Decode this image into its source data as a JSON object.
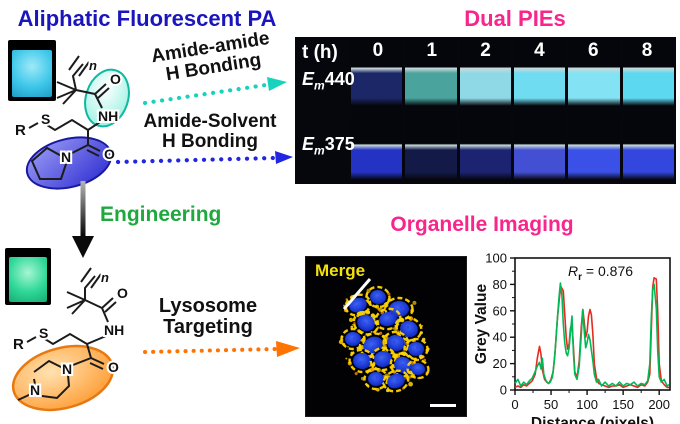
{
  "header": {
    "left_title": "Aliphatic Fluorescent PA",
    "right_title": "Dual PIEs"
  },
  "flow": {
    "amide_amide_line1": "Amide-amide",
    "amide_amide_line2": "H Bonding",
    "amide_solvent_line1": "Amide-Solvent",
    "amide_solvent_line2": "H Bonding",
    "engineering": "Engineering",
    "lysosome_line1": "Lysosome",
    "lysosome_line2": "Targeting"
  },
  "structure_labels": {
    "r_group": "R",
    "sulfur": "S",
    "amide_nh": "NH",
    "oxygen": "O",
    "nitrogen": "N",
    "repeat_unit": "n"
  },
  "uv_panel": {
    "time_header": "t (h)",
    "time_points": [
      "0",
      "1",
      "2",
      "4",
      "6",
      "8"
    ],
    "rows": [
      {
        "em_prefix": "E",
        "em_sub": "m",
        "em_value": "440",
        "vial_colors": [
          "#1b2766",
          "#4aa39c",
          "#8fd9e6",
          "#6fdcf2",
          "#83e2f4",
          "#5cd9f0"
        ]
      },
      {
        "em_prefix": "E",
        "em_sub": "m",
        "em_value": "375",
        "vial_colors": [
          "#2433c4",
          "#131a48",
          "#1c2472",
          "#4450d4",
          "#3a50e6",
          "#3346de"
        ]
      }
    ]
  },
  "imaging": {
    "title": "Organelle Imaging",
    "merge_label": "Merge"
  },
  "colors": {
    "left_title_blue": "#1a16bc",
    "pink_magenta": "#f7258c",
    "engineering_green": "#1fa83e",
    "arrow_teal": "#17d3be",
    "arrow_blue": "#2326e0",
    "arrow_orange": "#ff7300",
    "cuvette_cyan": "#3fc8ea",
    "cuvette_green": "#2fd898",
    "highlight_cyan_ellipse": "#8ff0e0",
    "highlight_blue_ellipse": "#4040e0",
    "highlight_orange_ellipse": "#ff9020"
  },
  "chart_data": {
    "type": "line",
    "title": "",
    "xlabel": "Distance (pixels)",
    "ylabel": "Grey Value",
    "xlim": [
      0,
      215
    ],
    "ylim": [
      0,
      100
    ],
    "xticks": [
      0,
      50,
      100,
      150,
      200
    ],
    "yticks": [
      0,
      20,
      40,
      60,
      80,
      100
    ],
    "grid": false,
    "legend": "none",
    "annotation": {
      "r_var": "R",
      "r_sub": "r",
      "equals_value": " = 0.876"
    },
    "series": [
      {
        "name": "red-channel",
        "color": "#e8291e",
        "points": [
          [
            0,
            2
          ],
          [
            4,
            3
          ],
          [
            8,
            2
          ],
          [
            12,
            4
          ],
          [
            16,
            3
          ],
          [
            20,
            5
          ],
          [
            24,
            7
          ],
          [
            28,
            12
          ],
          [
            31,
            24
          ],
          [
            34,
            33
          ],
          [
            36,
            27
          ],
          [
            38,
            15
          ],
          [
            41,
            8
          ],
          [
            44,
            6
          ],
          [
            47,
            5
          ],
          [
            50,
            8
          ],
          [
            53,
            14
          ],
          [
            56,
            32
          ],
          [
            59,
            55
          ],
          [
            62,
            72
          ],
          [
            64,
            78
          ],
          [
            67,
            75
          ],
          [
            69,
            58
          ],
          [
            71,
            40
          ],
          [
            73,
            31
          ],
          [
            75,
            35
          ],
          [
            77,
            47
          ],
          [
            79,
            50
          ],
          [
            81,
            33
          ],
          [
            83,
            14
          ],
          [
            86,
            9
          ],
          [
            89,
            22
          ],
          [
            92,
            48
          ],
          [
            94,
            61
          ],
          [
            96,
            52
          ],
          [
            98,
            40
          ],
          [
            100,
            44
          ],
          [
            102,
            56
          ],
          [
            104,
            61
          ],
          [
            106,
            57
          ],
          [
            108,
            42
          ],
          [
            110,
            20
          ],
          [
            113,
            9
          ],
          [
            116,
            5
          ],
          [
            120,
            4
          ],
          [
            125,
            3
          ],
          [
            130,
            2
          ],
          [
            135,
            3
          ],
          [
            140,
            3
          ],
          [
            145,
            4
          ],
          [
            150,
            2
          ],
          [
            155,
            3
          ],
          [
            160,
            4
          ],
          [
            165,
            3
          ],
          [
            170,
            2
          ],
          [
            175,
            4
          ],
          [
            180,
            3
          ],
          [
            184,
            6
          ],
          [
            187,
            12
          ],
          [
            189,
            45
          ],
          [
            191,
            78
          ],
          [
            193,
            85
          ],
          [
            196,
            84
          ],
          [
            198,
            60
          ],
          [
            200,
            20
          ],
          [
            203,
            7
          ],
          [
            207,
            4
          ],
          [
            211,
            2
          ],
          [
            214,
            2
          ]
        ]
      },
      {
        "name": "green-channel",
        "color": "#00b956",
        "points": [
          [
            0,
            5
          ],
          [
            4,
            8
          ],
          [
            8,
            3
          ],
          [
            12,
            6
          ],
          [
            16,
            4
          ],
          [
            20,
            7
          ],
          [
            24,
            9
          ],
          [
            28,
            14
          ],
          [
            31,
            18
          ],
          [
            34,
            21
          ],
          [
            36,
            16
          ],
          [
            38,
            24
          ],
          [
            40,
            12
          ],
          [
            43,
            7
          ],
          [
            46,
            5
          ],
          [
            49,
            6
          ],
          [
            52,
            10
          ],
          [
            55,
            25
          ],
          [
            58,
            48
          ],
          [
            61,
            70
          ],
          [
            63,
            81
          ],
          [
            65,
            72
          ],
          [
            67,
            50
          ],
          [
            69,
            36
          ],
          [
            71,
            28
          ],
          [
            73,
            26
          ],
          [
            75,
            32
          ],
          [
            77,
            44
          ],
          [
            79,
            56
          ],
          [
            81,
            28
          ],
          [
            83,
            12
          ],
          [
            86,
            8
          ],
          [
            89,
            18
          ],
          [
            92,
            42
          ],
          [
            94,
            61
          ],
          [
            96,
            45
          ],
          [
            98,
            32
          ],
          [
            100,
            36
          ],
          [
            102,
            42
          ],
          [
            104,
            38
          ],
          [
            106,
            30
          ],
          [
            108,
            22
          ],
          [
            110,
            12
          ],
          [
            113,
            6
          ],
          [
            116,
            8
          ],
          [
            120,
            3
          ],
          [
            125,
            6
          ],
          [
            130,
            3
          ],
          [
            135,
            5
          ],
          [
            140,
            3
          ],
          [
            145,
            6
          ],
          [
            150,
            3
          ],
          [
            155,
            5
          ],
          [
            160,
            4
          ],
          [
            165,
            6
          ],
          [
            170,
            3
          ],
          [
            175,
            5
          ],
          [
            180,
            4
          ],
          [
            184,
            7
          ],
          [
            187,
            20
          ],
          [
            189,
            55
          ],
          [
            191,
            76
          ],
          [
            193,
            80
          ],
          [
            196,
            62
          ],
          [
            198,
            30
          ],
          [
            200,
            10
          ],
          [
            203,
            6
          ],
          [
            207,
            8
          ],
          [
            211,
            3
          ],
          [
            214,
            4
          ]
        ]
      }
    ]
  }
}
